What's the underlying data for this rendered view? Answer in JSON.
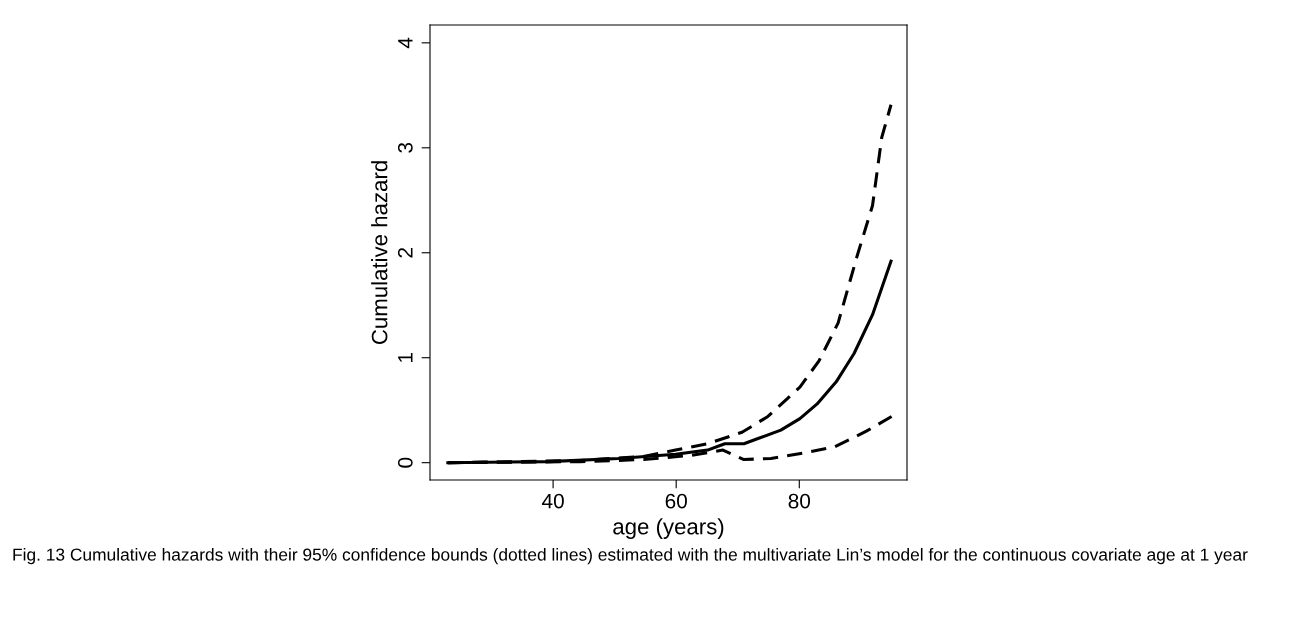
{
  "chart_data": {
    "type": "line",
    "xlabel": "age (years)",
    "ylabel": "Cumulative hazard",
    "xlim": [
      20,
      97.5
    ],
    "xticks": [
      40,
      60,
      80
    ],
    "ylim": [
      -0.165,
      4.17
    ],
    "yticks": [
      0,
      1,
      2,
      3,
      4
    ],
    "grid": false,
    "marker": "none",
    "series": [
      {
        "color": "#000000",
        "line_style": "solid",
        "x": [
          22.9,
          39.2,
          50.6,
          59.9,
          65.1,
          67.9,
          71.0,
          73.3,
          77.0,
          80.1,
          82.9,
          86.0,
          88.9,
          91.9,
          94.9
        ],
        "values": [
          0,
          0.01,
          0.04,
          0.08,
          0.12,
          0.18,
          0.18,
          0.23,
          0.31,
          0.42,
          0.56,
          0.77,
          1.04,
          1.41,
          1.92
        ]
      },
      {
        "color": "#000000",
        "line_style": "dashed",
        "x": [
          22.9,
          44.4,
          54.7,
          59.9,
          65.1,
          70.7,
          74.9,
          80.1,
          83.2,
          86.3,
          89.4,
          91.9,
          93.4,
          94.9
        ],
        "values": [
          0,
          0.02,
          0.06,
          0.12,
          0.18,
          0.29,
          0.44,
          0.72,
          0.97,
          1.33,
          1.97,
          2.45,
          3.1,
          3.41
        ]
      },
      {
        "color": "#000000",
        "line_style": "dashed",
        "x": [
          22.9,
          44.4,
          54.7,
          62.5,
          67.6,
          71.0,
          75.4,
          80.6,
          85.7,
          90.9,
          95.0
        ],
        "values": [
          0,
          0.01,
          0.03,
          0.07,
          0.12,
          0.03,
          0.04,
          0.09,
          0.15,
          0.3,
          0.44
        ]
      }
    ],
    "annotations": [
      "Fig. 13 Cumulative hazards with their 95% confidence bounds (dotted lines) estimated with the multivariate Lin’s model for the continuous covariate age at 1 year"
    ]
  }
}
